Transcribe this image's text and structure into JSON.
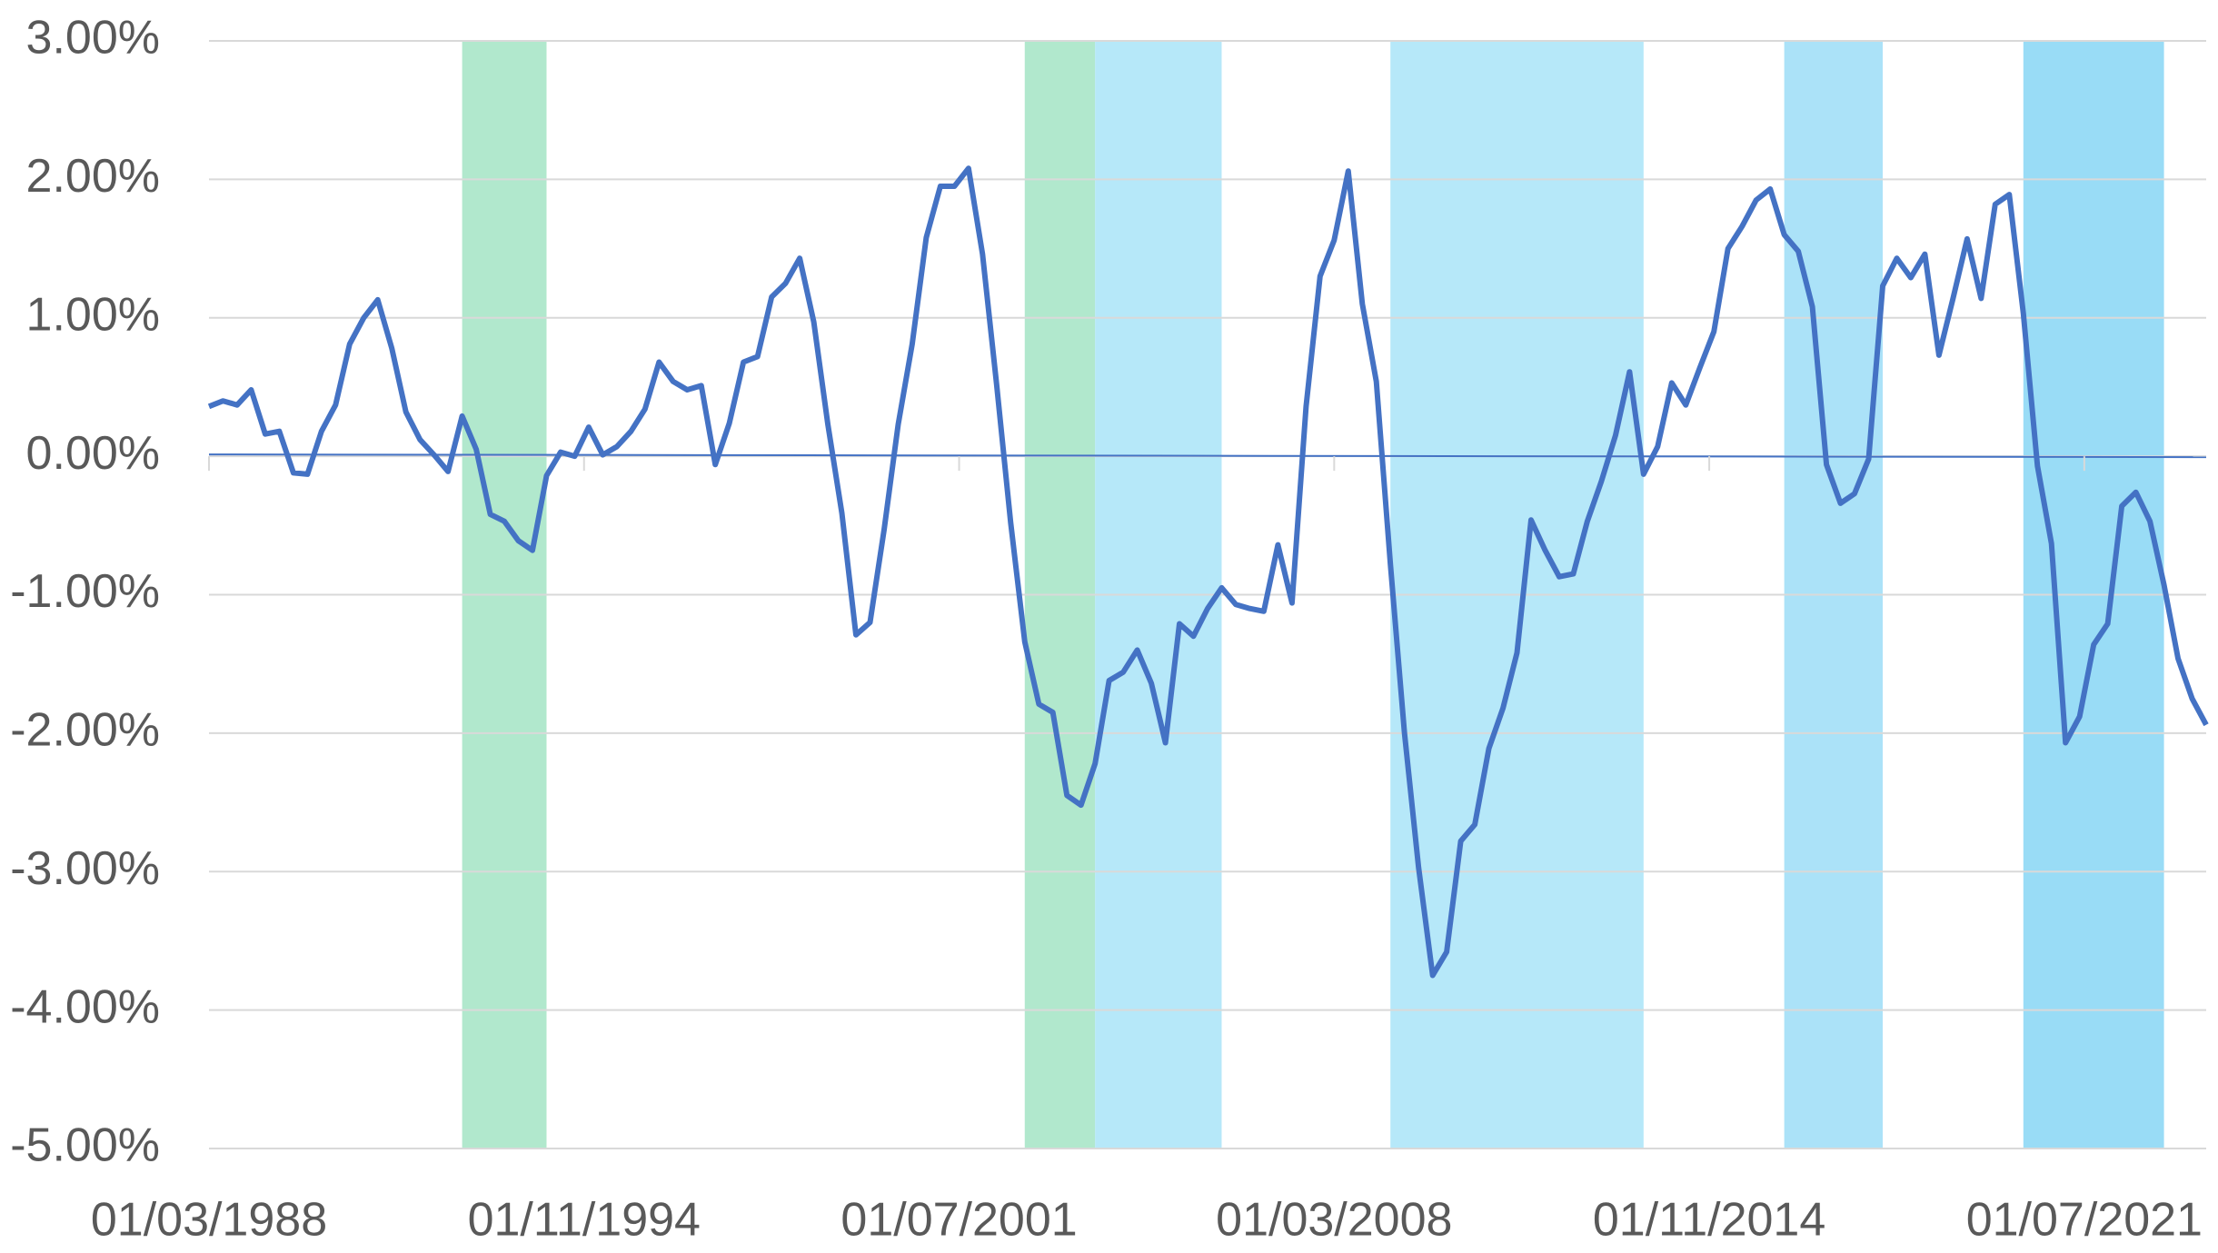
{
  "chart_data": {
    "type": "line",
    "x": [
      "01/03/1988",
      "01/06/1988",
      "01/09/1988",
      "01/12/1988",
      "01/03/1989",
      "01/06/1989",
      "01/09/1989",
      "01/12/1989",
      "01/03/1990",
      "01/06/1990",
      "01/09/1990",
      "01/12/1990",
      "01/03/1991",
      "01/06/1991",
      "01/09/1991",
      "01/12/1991",
      "01/03/1992",
      "01/06/1992",
      "01/09/1992",
      "01/12/1992",
      "01/03/1993",
      "01/06/1993",
      "01/09/1993",
      "01/12/1993",
      "01/03/1994",
      "01/06/1994",
      "01/09/1994",
      "01/12/1994",
      "01/03/1995",
      "01/06/1995",
      "01/09/1995",
      "01/12/1995",
      "01/03/1996",
      "01/06/1996",
      "01/09/1996",
      "01/12/1996",
      "01/03/1997",
      "01/06/1997",
      "01/09/1997",
      "01/12/1997",
      "01/03/1998",
      "01/06/1998",
      "01/09/1998",
      "01/12/1998",
      "01/03/1999",
      "01/06/1999",
      "01/09/1999",
      "01/12/1999",
      "01/03/2000",
      "01/06/2000",
      "01/09/2000",
      "01/12/2000",
      "01/03/2001",
      "01/06/2001",
      "01/09/2001",
      "01/12/2001",
      "01/03/2002",
      "01/06/2002",
      "01/09/2002",
      "01/12/2002",
      "01/03/2003",
      "01/06/2003",
      "01/09/2003",
      "01/12/2003",
      "01/03/2004",
      "01/06/2004",
      "01/09/2004",
      "01/12/2004",
      "01/03/2005",
      "01/06/2005",
      "01/09/2005",
      "01/12/2005",
      "01/03/2006",
      "01/06/2006",
      "01/09/2006",
      "01/12/2006",
      "01/03/2007",
      "01/06/2007",
      "01/09/2007",
      "01/12/2007",
      "01/03/2008",
      "01/06/2008",
      "01/09/2008",
      "01/12/2008",
      "01/03/2009",
      "01/06/2009",
      "01/09/2009",
      "01/12/2009",
      "01/03/2010",
      "01/06/2010",
      "01/09/2010",
      "01/12/2010",
      "01/03/2011",
      "01/06/2011",
      "01/09/2011",
      "01/12/2011",
      "01/03/2012",
      "01/06/2012",
      "01/09/2012",
      "01/12/2012",
      "01/03/2013",
      "01/06/2013",
      "01/09/2013",
      "01/12/2013",
      "01/03/2014",
      "01/06/2014",
      "01/09/2014",
      "01/12/2014",
      "01/03/2015",
      "01/06/2015",
      "01/09/2015",
      "01/12/2015",
      "01/03/2016",
      "01/06/2016",
      "01/09/2016",
      "01/12/2016",
      "01/03/2017",
      "01/06/2017",
      "01/09/2017",
      "01/12/2017",
      "01/03/2018",
      "01/06/2018",
      "01/09/2018",
      "01/12/2018",
      "01/03/2019",
      "01/06/2019",
      "01/09/2019",
      "01/12/2019",
      "01/03/2020",
      "01/06/2020",
      "01/09/2020",
      "01/12/2020",
      "01/03/2021",
      "01/06/2021",
      "01/09/2021",
      "01/12/2021",
      "01/03/2022",
      "01/06/2022",
      "01/09/2022",
      "01/12/2022",
      "01/03/2023",
      "01/06/2023",
      "01/09/2023"
    ],
    "series": [
      {
        "color": "#4472c4",
        "values": [
          0.36,
          0.4,
          0.37,
          0.48,
          0.16,
          0.18,
          -0.12,
          -0.13,
          0.18,
          0.37,
          0.81,
          1.0,
          1.13,
          0.78,
          0.32,
          0.12,
          0.01,
          -0.11,
          0.29,
          0.05,
          -0.42,
          -0.47,
          -0.61,
          -0.68,
          -0.14,
          0.03,
          0.0,
          0.21,
          0.01,
          0.07,
          0.18,
          0.34,
          0.68,
          0.54,
          0.48,
          0.51,
          -0.06,
          0.24,
          0.68,
          0.72,
          1.15,
          1.25,
          1.43,
          0.97,
          0.23,
          -0.41,
          -1.29,
          -1.2,
          -0.53,
          0.23,
          0.81,
          1.58,
          1.95,
          1.95,
          2.08,
          1.46,
          0.52,
          -0.48,
          -1.34,
          -1.79,
          -1.85,
          -2.45,
          -2.52,
          -2.22,
          -1.62,
          -1.56,
          -1.4,
          -1.64,
          -2.07,
          -1.21,
          -1.3,
          -1.1,
          -0.95,
          -1.07,
          -1.1,
          -1.12,
          -0.64,
          -1.06,
          0.36,
          1.3,
          1.56,
          2.06,
          1.1,
          0.54,
          -0.78,
          -2.0,
          -2.97,
          -3.75,
          -3.58,
          -2.78,
          -2.66,
          -2.11,
          -1.82,
          -1.42,
          -0.46,
          -0.68,
          -0.87,
          -0.85,
          -0.47,
          -0.18,
          0.15,
          0.61,
          -0.13,
          0.07,
          0.53,
          0.37,
          0.64,
          0.9,
          1.5,
          1.66,
          1.85,
          1.93,
          1.6,
          1.48,
          1.08,
          -0.06,
          -0.34,
          -0.27,
          -0.02,
          1.23,
          1.43,
          1.29,
          1.46,
          0.73,
          1.14,
          1.57,
          1.14,
          1.82,
          1.89,
          1.03,
          -0.07,
          -0.63,
          -2.07,
          -1.88,
          -1.36,
          -1.21,
          -0.36,
          -0.26,
          -0.47,
          -0.93,
          -1.46,
          -1.75,
          -1.94
        ]
      }
    ],
    "bands": [
      {
        "start": "01/09/1992",
        "end": "01/03/1994",
        "color": "#a8e6c8"
      },
      {
        "start": "01/09/2002",
        "end": "01/12/2003",
        "color": "#a8e6c8"
      },
      {
        "start": "01/12/2003",
        "end": "01/03/2006",
        "color": "#aee6f8"
      },
      {
        "start": "01/03/2009",
        "end": "01/09/2013",
        "color": "#aee6f8"
      },
      {
        "start": "01/03/2016",
        "end": "01/12/2017",
        "color": "#a2dff7"
      },
      {
        "start": "01/06/2020",
        "end": "01/12/2022",
        "color": "#8ed8f5"
      }
    ],
    "xlim": [
      "01/03/1988",
      "01/09/2023"
    ],
    "xticks": [
      "01/03/1988",
      "01/11/1994",
      "01/07/2001",
      "01/03/2008",
      "01/11/2014",
      "01/07/2021"
    ],
    "ylim": [
      -5,
      3
    ],
    "yticks": [
      {
        "value": 3,
        "label": "3.00%"
      },
      {
        "value": 2,
        "label": "2.00%"
      },
      {
        "value": 1,
        "label": "1.00%"
      },
      {
        "value": 0,
        "label": "0.00%"
      },
      {
        "value": -1,
        "label": "-1.00%"
      },
      {
        "value": -2,
        "label": "-2.00%"
      },
      {
        "value": -3,
        "label": "-3.00%"
      },
      {
        "value": -4,
        "label": "-4.00%"
      },
      {
        "value": -5,
        "label": "-5.00%"
      }
    ],
    "grid": true
  }
}
